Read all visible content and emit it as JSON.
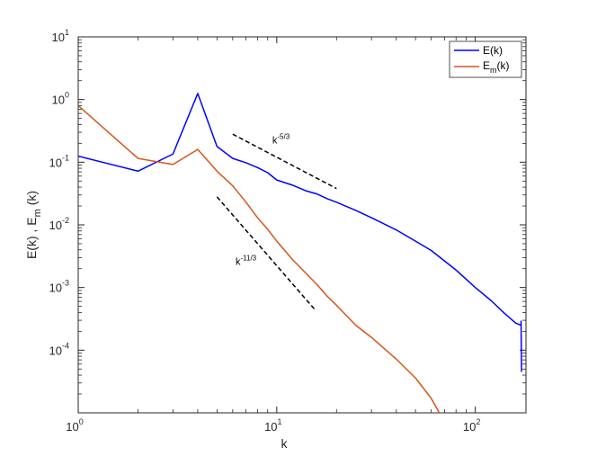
{
  "chart_data": {
    "type": "line",
    "x_scale": "log",
    "y_scale": "log",
    "xlim": [
      1,
      180
    ],
    "ylim": [
      1e-05,
      10
    ],
    "xlabel": "k",
    "ylabel_parts": {
      "a": "E(k) , E",
      "sub": "m",
      "b": " (k)"
    },
    "x_ticks": [
      {
        "value": 1,
        "base": "10",
        "exp": "0"
      },
      {
        "value": 10,
        "base": "10",
        "exp": "1"
      },
      {
        "value": 100,
        "base": "10",
        "exp": "2"
      }
    ],
    "y_ticks": [
      {
        "value": 0.0001,
        "base": "10",
        "exp": "-4"
      },
      {
        "value": 0.001,
        "base": "10",
        "exp": "-3"
      },
      {
        "value": 0.01,
        "base": "10",
        "exp": "-2"
      },
      {
        "value": 0.1,
        "base": "10",
        "exp": "-1"
      },
      {
        "value": 1,
        "base": "10",
        "exp": "0"
      },
      {
        "value": 10,
        "base": "10",
        "exp": "1"
      }
    ],
    "legend_placement": "top-right",
    "series": [
      {
        "id": "E",
        "legend": {
          "main": "E(k)",
          "sub": "",
          "tail": ""
        },
        "color": "#0000ff",
        "x": [
          1,
          2,
          3,
          4,
          5,
          6,
          7,
          8,
          9,
          10,
          12,
          14,
          16,
          18,
          20,
          25,
          30,
          40,
          50,
          60,
          80,
          100,
          120,
          140,
          160,
          170,
          170,
          171,
          172
        ],
        "y": [
          0.125,
          0.072,
          0.135,
          1.25,
          0.178,
          0.115,
          0.098,
          0.082,
          0.068,
          0.052,
          0.043,
          0.035,
          0.031,
          0.026,
          0.023,
          0.017,
          0.013,
          0.0083,
          0.0055,
          0.0039,
          0.0019,
          0.001,
          0.00062,
          0.00039,
          0.00027,
          0.00025,
          0.00029,
          4.6e-05,
          4.6e-05
        ]
      },
      {
        "id": "Em",
        "legend": {
          "main": "E",
          "sub": "m",
          "tail": "(k)"
        },
        "color": "#d95319",
        "x": [
          1,
          2,
          3,
          4,
          5,
          6,
          7,
          8,
          9,
          10,
          12,
          14,
          16,
          18,
          20,
          25,
          30,
          40,
          50,
          60,
          66
        ],
        "y": [
          0.8,
          0.115,
          0.092,
          0.16,
          0.072,
          0.042,
          0.023,
          0.013,
          0.0085,
          0.0055,
          0.0028,
          0.0017,
          0.0011,
          0.00072,
          0.00052,
          0.00025,
          0.00016,
          7.2e-05,
          3.6e-05,
          1.7e-05,
          9.9e-06
        ]
      }
    ],
    "reference_lines": [
      {
        "id": "slope-5-3",
        "x": [
          6,
          20
        ],
        "y": [
          0.28,
          0.038
        ],
        "label_base": "k",
        "label_exp": "-5/3",
        "label_at": [
          9.5,
          0.2
        ]
      },
      {
        "id": "slope-11-3",
        "x": [
          5,
          15.5
        ],
        "y": [
          0.028,
          0.00045
        ],
        "label_base": "k",
        "label_exp": "-11/3",
        "label_at": [
          6.2,
          0.0023
        ]
      }
    ]
  }
}
